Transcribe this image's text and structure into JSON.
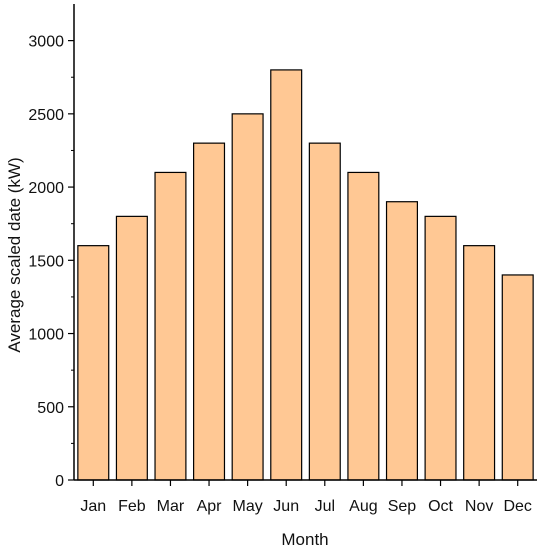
{
  "chart_data": {
    "type": "bar",
    "categories": [
      "Jan",
      "Feb",
      "Mar",
      "Apr",
      "May",
      "Jun",
      "Jul",
      "Aug",
      "Sep",
      "Oct",
      "Nov",
      "Dec"
    ],
    "values": [
      1600,
      1800,
      2100,
      2300,
      2500,
      2800,
      2300,
      2100,
      1900,
      1800,
      1600,
      1400
    ],
    "title": "",
    "xlabel": "Month",
    "ylabel": "Average scaled date (kW)",
    "ylim": [
      0,
      3250
    ],
    "yticks": [
      0,
      500,
      1000,
      1500,
      2000,
      2500,
      3000
    ],
    "ytick_labels": [
      "0",
      "500",
      "1000",
      "1500",
      "2000",
      "2500",
      "3000"
    ],
    "grid": false,
    "legend": "none",
    "colors": {
      "bar_fill": "#FFC894",
      "bar_stroke": "#000000",
      "axis": "#000000"
    }
  }
}
